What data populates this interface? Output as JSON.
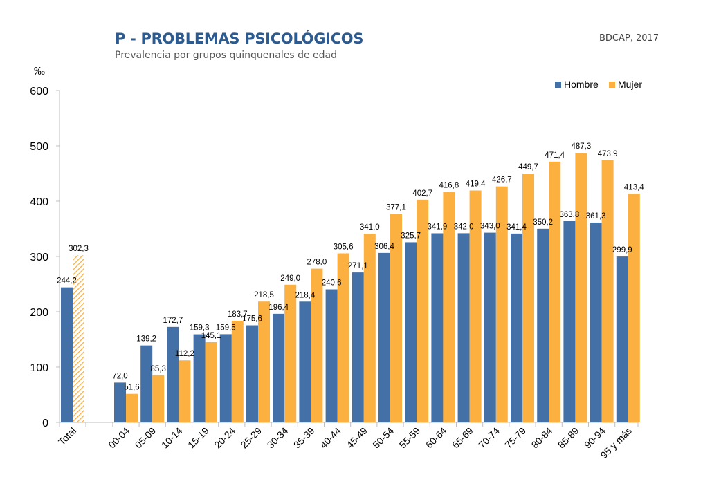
{
  "header": {
    "title": "P - PROBLEMAS PSICOLÓGICOS",
    "subtitle": "Prevalencia por grupos quinquenales de edad",
    "source": "BDCAP, 2017"
  },
  "colors": {
    "hombre": "#4470a8",
    "mujer": "#fbb040",
    "axis": "#bfbfbf"
  },
  "chart_data": {
    "type": "bar",
    "title": "P - PROBLEMAS PSICOLÓGICOS",
    "ylabel": "‰",
    "xlabel": "",
    "ylim": [
      0,
      600
    ],
    "yticks": [
      0,
      100,
      200,
      300,
      400,
      500,
      600
    ],
    "legend_position": "top-right",
    "categories": [
      "Total",
      "00-04",
      "05-09",
      "10-14",
      "15-19",
      "20-24",
      "25-29",
      "30-34",
      "35-39",
      "40-44",
      "45-49",
      "50-54",
      "55-59",
      "60-64",
      "65-69",
      "70-74",
      "75-79",
      "80-84",
      "85-89",
      "90-94",
      "95 y más"
    ],
    "series": [
      {
        "name": "Hombre",
        "values": [
          244.2,
          72.0,
          139.2,
          172.7,
          159.3,
          159.5,
          175.6,
          196.4,
          218.4,
          240.6,
          271.1,
          306.4,
          325.7,
          341.9,
          342.0,
          343.0,
          341.4,
          350.2,
          363.8,
          361.3,
          299.9
        ],
        "labels": [
          "244,2",
          "72,0",
          "139,2",
          "172,7",
          "159,3",
          "159,5",
          "175,6",
          "196,4",
          "218,4",
          "240,6",
          "271,1",
          "306,4",
          "325,7",
          "341,9",
          "342,0",
          "343,0",
          "341,4",
          "350,2",
          "363,8",
          "361,3",
          "299,9"
        ]
      },
      {
        "name": "Mujer",
        "values": [
          302.3,
          51.6,
          85.3,
          112.2,
          145.1,
          183.7,
          218.5,
          249.0,
          278.0,
          305.6,
          341.0,
          377.1,
          402.7,
          416.8,
          419.4,
          426.7,
          449.7,
          471.4,
          487.3,
          473.9,
          413.4
        ],
        "labels": [
          "302,3",
          "51,6",
          "85,3",
          "112,2",
          "145,1",
          "183,7",
          "218,5",
          "249,0",
          "278,0",
          "305,6",
          "341,0",
          "377,1",
          "402,7",
          "416,8",
          "419,4",
          "426,7",
          "449,7",
          "471,4",
          "487,3",
          "473,9",
          "413,4"
        ]
      }
    ]
  }
}
